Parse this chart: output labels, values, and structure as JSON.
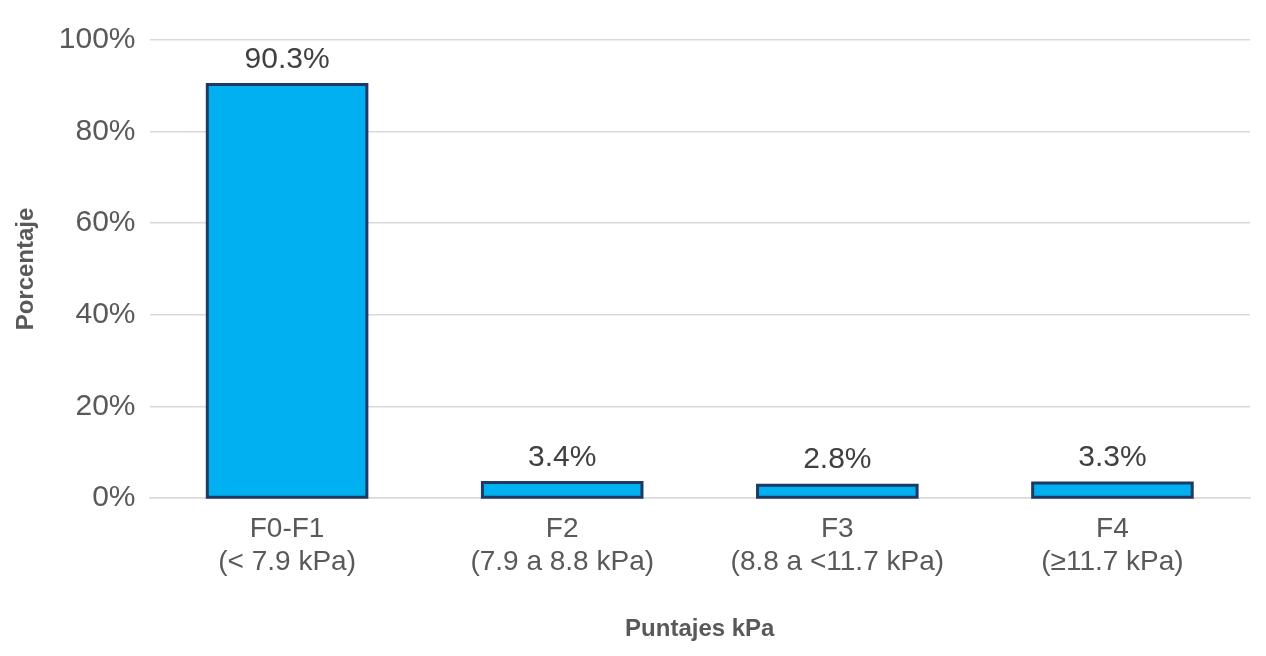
{
  "chart_data": {
    "type": "bar",
    "xlabel": "Puntajes kPa",
    "ylabel": "Porcentaje",
    "categories": [
      "F0-F1\n(< 7.9 kPa)",
      "F2\n(7.9 a 8.8 kPa)",
      "F3\n(8.8 a <11.7 kPa)",
      "F4\n(≥11.7 kPa)"
    ],
    "values": [
      90.3,
      3.4,
      2.8,
      3.3
    ],
    "value_labels": [
      "90.3%",
      "3.4%",
      "2.8%",
      "3.3%"
    ],
    "color": "#00b0f0",
    "ylim": [
      0,
      100
    ],
    "yticks": [
      {
        "value": 0,
        "label": "0%"
      },
      {
        "value": 20,
        "label": "20%"
      },
      {
        "value": 40,
        "label": "40%"
      },
      {
        "value": 60,
        "label": "60%"
      },
      {
        "value": 80,
        "label": "80%"
      },
      {
        "value": 100,
        "label": "100%"
      }
    ],
    "grid": "y",
    "legend": false
  }
}
